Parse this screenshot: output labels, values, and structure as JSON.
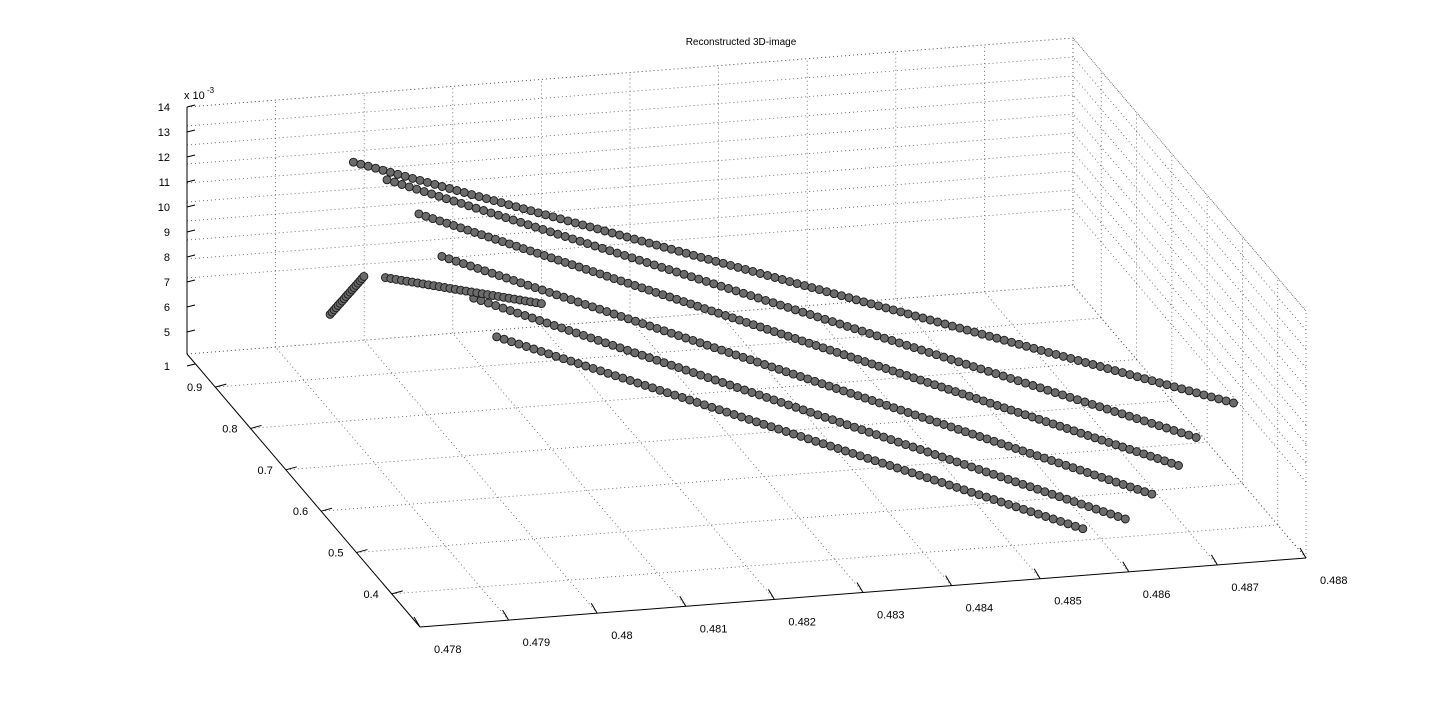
{
  "chart_data": {
    "type": "scatter",
    "title": "Reconstructed 3D-image",
    "xlabel": "",
    "ylabel": "",
    "zlabel": "",
    "z_exponent_label": "x 10",
    "z_exponent_power": "-3",
    "x_ticks": [
      "0.478",
      "0.479",
      "0.48",
      "0.481",
      "0.482",
      "0.483",
      "0.484",
      "0.485",
      "0.486",
      "0.487",
      "0.488"
    ],
    "y_ticks": [
      "0.4",
      "0.5",
      "0.6",
      "0.7",
      "0.8",
      "0.9"
    ],
    "z_ticks": [
      "1",
      "5",
      "6",
      "7",
      "8",
      "9",
      "10",
      "11",
      "12",
      "13",
      "14"
    ],
    "xlim": [
      0.478,
      0.488
    ],
    "ylim": [
      0.32,
      0.98
    ],
    "zlim": [
      1,
      14
    ],
    "grid": true,
    "marker_face_color": "#6b6b6b",
    "marker_edge_color": "#1a1a1a",
    "view": "3d",
    "series": [
      {
        "points_description_note": "",
        "segments": [
          {
            "from": [
              0.4785,
              0.7,
              9.0
            ],
            "to": [
              0.4792,
              0.78,
              9.0
            ],
            "count": 18
          },
          {
            "from": [
              0.4794,
              0.86,
              13.2
            ],
            "to": [
              0.4875,
              0.4,
              7.6
            ],
            "count": 120
          },
          {
            "from": [
              0.4797,
              0.84,
              12.6
            ],
            "to": [
              0.487,
              0.38,
              6.4
            ],
            "count": 110
          },
          {
            "from": [
              0.4799,
              0.8,
              11.6
            ],
            "to": [
              0.4868,
              0.38,
              5.0
            ],
            "count": 110
          },
          {
            "from": [
              0.48,
              0.76,
              10.2
            ],
            "to": [
              0.4865,
              0.38,
              3.6
            ],
            "count": 100
          },
          {
            "from": [
              0.4802,
              0.72,
              8.8
            ],
            "to": [
              0.4862,
              0.38,
              2.4
            ],
            "count": 90
          },
          {
            "from": [
              0.4803,
              0.68,
              7.6
            ],
            "to": [
              0.4858,
              0.4,
              1.6
            ],
            "count": 80
          },
          {
            "from": [
              0.48,
              0.92,
              5.6
            ],
            "to": [
              0.482,
              0.98,
              2.2
            ],
            "count": 30
          }
        ]
      }
    ]
  }
}
